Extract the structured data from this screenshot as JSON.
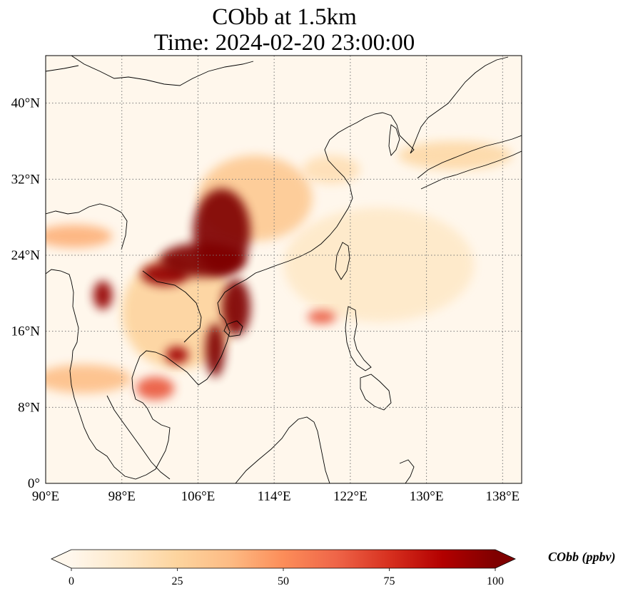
{
  "title": {
    "line1": "CObb at 1.5km",
    "line2": "Time: 2024-02-20 23:00:00"
  },
  "map": {
    "lon_range": [
      90,
      140
    ],
    "lat_range": [
      0,
      45
    ],
    "lon_ticks": [
      {
        "value": 90,
        "label": "90°E"
      },
      {
        "value": 98,
        "label": "98°E"
      },
      {
        "value": 106,
        "label": "106°E"
      },
      {
        "value": 114,
        "label": "114°E"
      },
      {
        "value": 122,
        "label": "122°E"
      },
      {
        "value": 130,
        "label": "130°E"
      },
      {
        "value": 138,
        "label": "138°E"
      }
    ],
    "lat_ticks": [
      {
        "value": 0,
        "label": "0°"
      },
      {
        "value": 8,
        "label": "8°N"
      },
      {
        "value": 16,
        "label": "16°N"
      },
      {
        "value": 24,
        "label": "24°N"
      },
      {
        "value": 32,
        "label": "32°N"
      },
      {
        "value": 40,
        "label": "40°N"
      }
    ],
    "gridlines": true,
    "colormap": "OrRd",
    "plumes": [
      {
        "lon": 108.5,
        "lat": 26.5,
        "rlon": 3.0,
        "rlat": 4.5,
        "value": 100
      },
      {
        "lon": 106.5,
        "lat": 23.5,
        "rlon": 4.5,
        "rlat": 1.8,
        "value": 100
      },
      {
        "lon": 102.5,
        "lat": 22.0,
        "rlon": 2.5,
        "rlat": 1.2,
        "value": 95
      },
      {
        "lon": 110.0,
        "lat": 18.5,
        "rlon": 1.5,
        "rlat": 3.0,
        "value": 100
      },
      {
        "lon": 107.8,
        "lat": 14.0,
        "rlon": 1.0,
        "rlat": 2.8,
        "value": 100
      },
      {
        "lon": 96.0,
        "lat": 19.8,
        "rlon": 1.0,
        "rlat": 1.5,
        "value": 95
      },
      {
        "lon": 103.8,
        "lat": 13.5,
        "rlon": 1.2,
        "rlat": 0.9,
        "value": 92
      },
      {
        "lon": 101.5,
        "lat": 10.0,
        "rlon": 2.0,
        "rlat": 1.2,
        "value": 65
      },
      {
        "lon": 119.0,
        "lat": 17.5,
        "rlon": 1.5,
        "rlat": 0.7,
        "value": 65
      },
      {
        "lon": 112.0,
        "lat": 30.0,
        "rlon": 6.0,
        "rlat": 4.5,
        "value": 30
      },
      {
        "lon": 104.0,
        "lat": 18.0,
        "rlon": 6.0,
        "rlat": 6.0,
        "value": 25
      },
      {
        "lon": 93.0,
        "lat": 26.0,
        "rlon": 4.0,
        "rlat": 1.2,
        "value": 40
      },
      {
        "lon": 94.0,
        "lat": 11.0,
        "rlon": 5.0,
        "rlat": 1.5,
        "value": 35
      },
      {
        "lon": 133.0,
        "lat": 34.5,
        "rlon": 6.0,
        "rlat": 1.5,
        "value": 22
      },
      {
        "lon": 125.0,
        "lat": 23.0,
        "rlon": 10.0,
        "rlat": 6.0,
        "value": 12
      },
      {
        "lon": 120.0,
        "lat": 33.0,
        "rlon": 3.0,
        "rlat": 1.5,
        "value": 18
      }
    ]
  },
  "colorbar": {
    "min": 0,
    "max": 100,
    "extend": "both",
    "ticks": [
      "0",
      "25",
      "50",
      "75",
      "100"
    ],
    "label": "CObb (ppbv)",
    "stops": [
      "#fff7ec",
      "#fee8c8",
      "#fdd49e",
      "#fdbb84",
      "#fc8d59",
      "#ef6548",
      "#d7301f",
      "#b30000",
      "#7f0000"
    ]
  }
}
